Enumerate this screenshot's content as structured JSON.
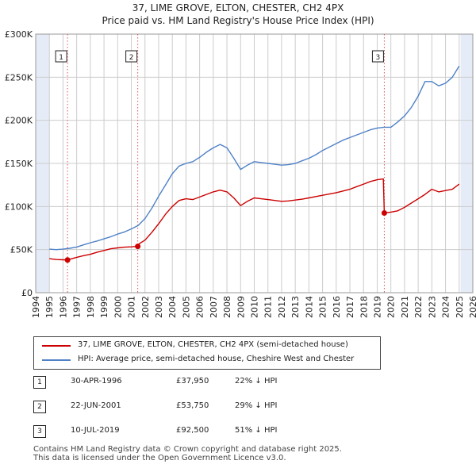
{
  "header": {
    "title": "37, LIME GROVE, ELTON, CHESTER, CH2 4PX",
    "subtitle": "Price paid vs. HM Land Registry's House Price Index (HPI)"
  },
  "colors": {
    "property": "#cc0000",
    "hpi": "#4f81c7",
    "shade": "#e6ecf7",
    "grid": "#cccccc"
  },
  "chart_data": {
    "type": "line",
    "title": "37, LIME GROVE, ELTON, CHESTER, CH2 4PX",
    "subtitle": "Price paid vs. HM Land Registry's House Price Index (HPI)",
    "xlim": [
      1994,
      2026
    ],
    "ylim": [
      0,
      300000
    ],
    "x_ticks": [
      1994,
      1995,
      1996,
      1997,
      1998,
      1999,
      2000,
      2001,
      2002,
      2003,
      2004,
      2005,
      2006,
      2007,
      2008,
      2009,
      2010,
      2011,
      2012,
      2013,
      2014,
      2015,
      2016,
      2017,
      2018,
      2019,
      2020,
      2021,
      2022,
      2023,
      2024,
      2025,
      2026
    ],
    "y_ticks": [
      0,
      50000,
      100000,
      150000,
      200000,
      250000,
      300000
    ],
    "y_tick_labels": [
      "£0",
      "£50K",
      "£100K",
      "£150K",
      "£200K",
      "£250K",
      "£300K"
    ],
    "data_range": [
      1995,
      2025.1
    ],
    "grid": true,
    "series": [
      {
        "name": "37, LIME GROVE, ELTON, CHESTER, CH2 4PX (semi-detached house)",
        "color": "#cc0000",
        "x": [
          1995.0,
          1995.5,
          1996.0,
          1996.33,
          1996.5,
          1997.0,
          1997.5,
          1998.0,
          1998.5,
          1999.0,
          1999.5,
          2000.0,
          2000.5,
          2001.0,
          2001.47,
          2001.5,
          2002.0,
          2002.5,
          2003.0,
          2003.5,
          2004.0,
          2004.5,
          2005.0,
          2005.5,
          2006.0,
          2006.5,
          2007.0,
          2007.5,
          2008.0,
          2008.5,
          2009.0,
          2009.5,
          2010.0,
          2010.5,
          2011.0,
          2011.5,
          2012.0,
          2012.5,
          2013.0,
          2013.5,
          2014.0,
          2014.5,
          2015.0,
          2015.5,
          2016.0,
          2016.5,
          2017.0,
          2017.5,
          2018.0,
          2018.5,
          2019.0,
          2019.45,
          2019.52,
          2020.0,
          2020.5,
          2021.0,
          2021.5,
          2022.0,
          2022.5,
          2023.0,
          2023.5,
          2024.0,
          2024.5,
          2025.0
        ],
        "y": [
          39500,
          38500,
          38200,
          37950,
          38800,
          41000,
          43000,
          44500,
          47000,
          49000,
          51000,
          52000,
          52800,
          53200,
          53750,
          56000,
          61000,
          70000,
          80000,
          91000,
          100000,
          107000,
          109000,
          108000,
          111000,
          114000,
          117000,
          119000,
          117000,
          110000,
          101000,
          106000,
          110000,
          109000,
          108000,
          107000,
          106000,
          106500,
          107500,
          108500,
          110000,
          111500,
          113000,
          114500,
          116000,
          118000,
          120000,
          123000,
          126000,
          129000,
          131000,
          132000,
          92500,
          93500,
          95000,
          99000,
          104000,
          109000,
          114000,
          120000,
          117000,
          118500,
          120000,
          126000
        ]
      },
      {
        "name": "HPI: Average price, semi-detached house, Cheshire West and Chester",
        "color": "#4f81c7",
        "x": [
          1995.0,
          1995.5,
          1996.0,
          1996.5,
          1997.0,
          1997.5,
          1998.0,
          1998.5,
          1999.0,
          1999.5,
          2000.0,
          2000.5,
          2001.0,
          2001.5,
          2002.0,
          2002.5,
          2003.0,
          2003.5,
          2004.0,
          2004.5,
          2005.0,
          2005.5,
          2006.0,
          2006.5,
          2007.0,
          2007.5,
          2008.0,
          2008.5,
          2009.0,
          2009.5,
          2010.0,
          2010.5,
          2011.0,
          2011.5,
          2012.0,
          2012.5,
          2013.0,
          2013.5,
          2014.0,
          2014.5,
          2015.0,
          2015.5,
          2016.0,
          2016.5,
          2017.0,
          2017.5,
          2018.0,
          2018.5,
          2019.0,
          2019.5,
          2020.0,
          2020.5,
          2021.0,
          2021.5,
          2022.0,
          2022.5,
          2023.0,
          2023.5,
          2024.0,
          2024.5,
          2025.0
        ],
        "y": [
          50500,
          50000,
          50500,
          51500,
          53000,
          55500,
          58000,
          60000,
          62500,
          65000,
          68000,
          70500,
          74000,
          78000,
          86000,
          98000,
          112000,
          125000,
          138000,
          147000,
          150000,
          152000,
          157000,
          163000,
          168000,
          172000,
          168000,
          156000,
          143000,
          148000,
          152000,
          151000,
          150000,
          149000,
          148000,
          148500,
          150000,
          153000,
          156000,
          160000,
          165000,
          169000,
          173000,
          177000,
          180000,
          183000,
          186000,
          189000,
          191000,
          192000,
          192000,
          198000,
          205000,
          215000,
          228000,
          245000,
          245000,
          240000,
          243000,
          250000,
          263000
        ]
      }
    ],
    "sales": [
      {
        "label": "1",
        "x": 1996.33,
        "y": 37950
      },
      {
        "label": "2",
        "x": 2001.47,
        "y": 53750
      },
      {
        "label": "3",
        "x": 2019.52,
        "y": 92500
      }
    ]
  },
  "legend": {
    "property_label": "37, LIME GROVE, ELTON, CHESTER, CH2 4PX (semi-detached house)",
    "hpi_label": "HPI: Average price, semi-detached house, Cheshire West and Chester"
  },
  "transactions": [
    {
      "num": "1",
      "date": "30-APR-1996",
      "price": "£37,950",
      "hpi": "22% ↓ HPI"
    },
    {
      "num": "2",
      "date": "22-JUN-2001",
      "price": "£53,750",
      "hpi": "29% ↓ HPI"
    },
    {
      "num": "3",
      "date": "10-JUL-2019",
      "price": "£92,500",
      "hpi": "51% ↓ HPI"
    }
  ],
  "footer": {
    "line1": "Contains HM Land Registry data © Crown copyright and database right 2025.",
    "line2": "This data is licensed under the Open Government Licence v3.0."
  }
}
